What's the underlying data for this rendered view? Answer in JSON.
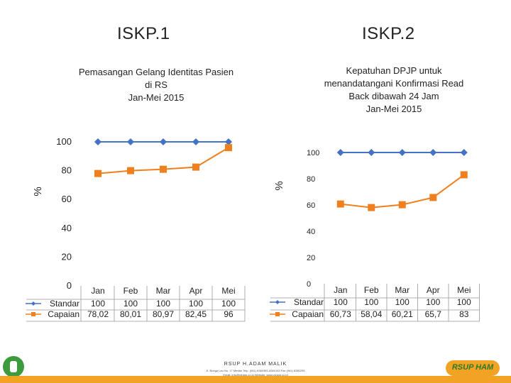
{
  "titles": {
    "left": "ISKP.1",
    "right": "ISKP.2"
  },
  "chart_data": [
    {
      "type": "line",
      "title": "Pemasangan Gelang Identitas Pasien\ndi RS\nJan-Mei 2015",
      "ylabel": "%",
      "categories": [
        "Jan",
        "Feb",
        "Mar",
        "Apr",
        "Mei"
      ],
      "ylim": [
        0,
        100
      ],
      "yticks": [
        0,
        20,
        40,
        60,
        80,
        100
      ],
      "series": [
        {
          "name": "Standar",
          "values": [
            100,
            100,
            100,
            100,
            100
          ],
          "color": "#4472c4",
          "marker": "diamond"
        },
        {
          "name": "Capaian",
          "values": [
            78.02,
            80.01,
            80.97,
            82.45,
            96
          ],
          "color": "#f07f1e",
          "marker": "square"
        }
      ],
      "table": {
        "rows": [
          {
            "name": "Standar",
            "values": [
              "100",
              "100",
              "100",
              "100",
              "100"
            ]
          },
          {
            "name": "Capaian",
            "values": [
              "78,02",
              "80,01",
              "80,97",
              "82,45",
              "96"
            ]
          }
        ]
      },
      "grid": false,
      "legend": "data table"
    },
    {
      "type": "line",
      "title": "Kepatuhan DPJP untuk\nmenandatangani Konfirmasi Read\nBack dibawah 24 Jam\nJan-Mei 2015",
      "ylabel": "%",
      "categories": [
        "Jan",
        "Feb",
        "Mar",
        "Apr",
        "Mei"
      ],
      "ylim": [
        0,
        100
      ],
      "yticks": [
        0,
        20,
        40,
        60,
        80,
        100
      ],
      "series": [
        {
          "name": "Standar",
          "values": [
            100,
            100,
            100,
            100,
            100
          ],
          "color": "#4472c4",
          "marker": "diamond"
        },
        {
          "name": "Capaian",
          "values": [
            60.73,
            58.04,
            60.21,
            65.7,
            83
          ],
          "color": "#f07f1e",
          "marker": "square"
        }
      ],
      "table": {
        "rows": [
          {
            "name": "Standar",
            "values": [
              "100",
              "100",
              "100",
              "100",
              "100"
            ]
          },
          {
            "name": "Capaian",
            "values": [
              "60,73",
              "58,04",
              "60,21",
              "65,7",
              "83"
            ]
          }
        ]
      },
      "grid": false,
      "legend": "data table"
    }
  ],
  "footer": {
    "name": "RSUP H.ADAM MALIK",
    "line1": "Jl. Bunga Lau No. 17 Medan Telp. (061) 8360381-8360143 Fax (061) 8360255",
    "line2": "Email: info@rsham.co.id Website: www.rsham.co.id",
    "logo_text": "RSUP HAM"
  }
}
